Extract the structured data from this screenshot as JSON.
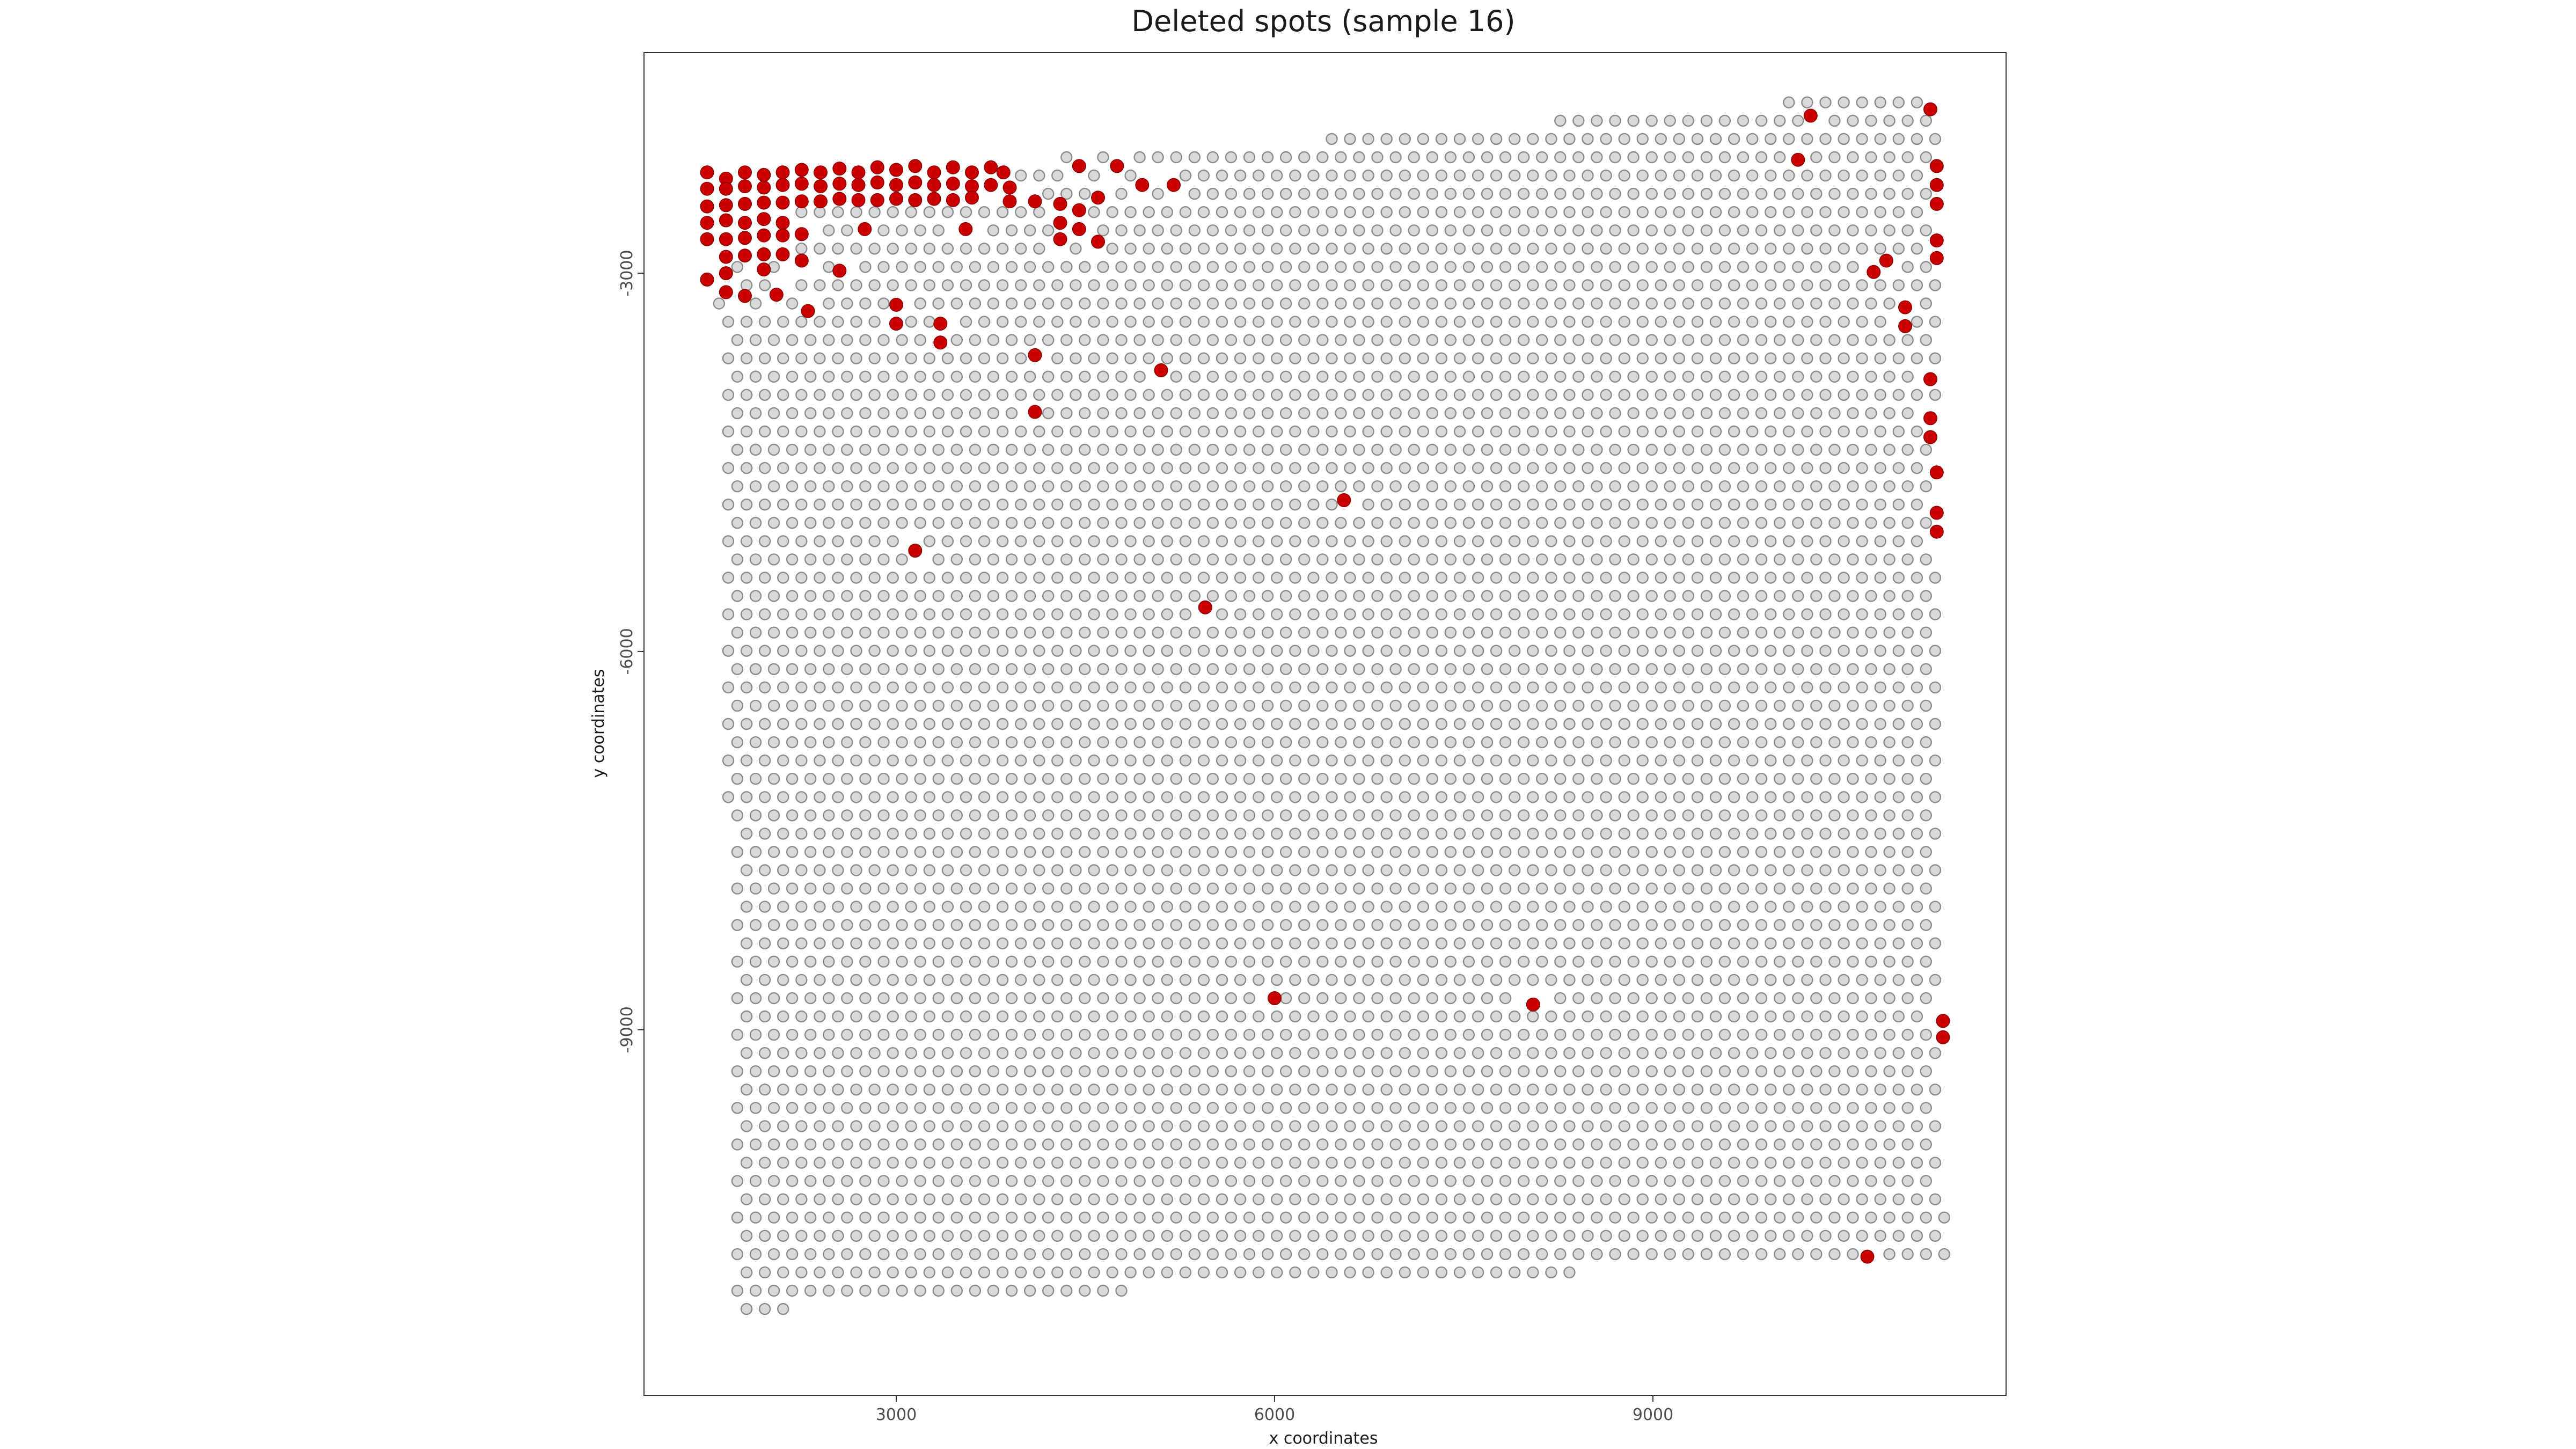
{
  "chart_data": {
    "type": "scatter",
    "title": "Deleted spots (sample 16)",
    "xlabel": "x coordinates",
    "ylabel": "y coordinates",
    "xlim": [
      1000,
      11800
    ],
    "ylim": [
      -11900,
      -1250
    ],
    "x_ticks": [
      3000,
      6000,
      9000
    ],
    "y_ticks": [
      -3000,
      -6000,
      -9000
    ],
    "x_tick_labels": [
      "3000",
      "6000",
      "9000"
    ],
    "y_tick_labels": [
      "-3000",
      "-6000",
      "-9000"
    ],
    "grid": false,
    "legend": "none",
    "colors": {
      "kept_fill": "#d9d9d9",
      "kept_stroke": "#8c8c8c",
      "deleted_fill": "#cc0000",
      "deleted_stroke": "#990000"
    },
    "lattice": {
      "col_spacing": 145,
      "row_spacing": 145,
      "odd_row_offset": 73,
      "top_edge": [
        [
          1480,
          -2250
        ],
        [
          5500,
          -2000
        ],
        [
          11250,
          -1550
        ]
      ],
      "bottom_edge": [
        [
          1600,
          -11250
        ],
        [
          4000,
          -11100
        ],
        [
          7000,
          -11000
        ],
        [
          10800,
          -10800
        ]
      ],
      "left_edge": [
        [
          -2250,
          1500
        ],
        [
          -3500,
          1600
        ],
        [
          -6000,
          1640
        ],
        [
          -9000,
          1700
        ],
        [
          -11250,
          1720
        ]
      ],
      "right_edge": [
        [
          -1550,
          11250
        ],
        [
          -10000,
          11250
        ],
        [
          -10300,
          11250
        ],
        [
          -10700,
          11400
        ]
      ]
    },
    "series": [
      {
        "name": "deleted",
        "points": [
          [
            1500,
            -2200
          ],
          [
            1650,
            -2250
          ],
          [
            1800,
            -2200
          ],
          [
            1950,
            -2220
          ],
          [
            2100,
            -2200
          ],
          [
            2250,
            -2180
          ],
          [
            2400,
            -2200
          ],
          [
            2550,
            -2170
          ],
          [
            2700,
            -2200
          ],
          [
            2850,
            -2160
          ],
          [
            3000,
            -2180
          ],
          [
            3150,
            -2150
          ],
          [
            3300,
            -2200
          ],
          [
            3450,
            -2160
          ],
          [
            3600,
            -2200
          ],
          [
            3750,
            -2160
          ],
          [
            3850,
            -2200
          ],
          [
            1500,
            -2330
          ],
          [
            1650,
            -2330
          ],
          [
            1800,
            -2310
          ],
          [
            1950,
            -2320
          ],
          [
            2100,
            -2300
          ],
          [
            2250,
            -2290
          ],
          [
            2400,
            -2310
          ],
          [
            2550,
            -2290
          ],
          [
            2700,
            -2300
          ],
          [
            2850,
            -2280
          ],
          [
            3000,
            -2300
          ],
          [
            3150,
            -2280
          ],
          [
            3300,
            -2300
          ],
          [
            3450,
            -2290
          ],
          [
            3600,
            -2310
          ],
          [
            3750,
            -2300
          ],
          [
            3900,
            -2320
          ],
          [
            1500,
            -2470
          ],
          [
            1650,
            -2460
          ],
          [
            1800,
            -2450
          ],
          [
            1950,
            -2440
          ],
          [
            2100,
            -2440
          ],
          [
            2250,
            -2430
          ],
          [
            2400,
            -2430
          ],
          [
            2550,
            -2410
          ],
          [
            2700,
            -2420
          ],
          [
            2850,
            -2420
          ],
          [
            3000,
            -2410
          ],
          [
            3150,
            -2420
          ],
          [
            3300,
            -2410
          ],
          [
            3450,
            -2420
          ],
          [
            3600,
            -2400
          ],
          [
            3900,
            -2430
          ],
          [
            4100,
            -2430
          ],
          [
            1500,
            -2600
          ],
          [
            1650,
            -2580
          ],
          [
            1800,
            -2600
          ],
          [
            1950,
            -2570
          ],
          [
            2100,
            -2600
          ],
          [
            1500,
            -2730
          ],
          [
            1650,
            -2730
          ],
          [
            1800,
            -2720
          ],
          [
            1950,
            -2700
          ],
          [
            2100,
            -2700
          ],
          [
            2250,
            -2690
          ],
          [
            1650,
            -2870
          ],
          [
            1800,
            -2860
          ],
          [
            1950,
            -2850
          ],
          [
            2100,
            -2850
          ],
          [
            2250,
            -2900
          ],
          [
            1650,
            -3000
          ],
          [
            1950,
            -2970
          ],
          [
            1500,
            -3050
          ],
          [
            1650,
            -3150
          ],
          [
            1800,
            -3180
          ],
          [
            2050,
            -3170
          ],
          [
            2300,
            -3300
          ],
          [
            2550,
            -2980
          ],
          [
            2750,
            -2650
          ],
          [
            3000,
            -3250
          ],
          [
            3000,
            -3400
          ],
          [
            3350,
            -3400
          ],
          [
            3350,
            -3550
          ],
          [
            3550,
            -2650
          ],
          [
            4100,
            -3650
          ],
          [
            4100,
            -4100
          ],
          [
            4300,
            -2450
          ],
          [
            4300,
            -2600
          ],
          [
            4300,
            -2730
          ],
          [
            4450,
            -2150
          ],
          [
            4450,
            -2500
          ],
          [
            4450,
            -2650
          ],
          [
            4600,
            -2400
          ],
          [
            4600,
            -2750
          ],
          [
            4750,
            -2150
          ],
          [
            4950,
            -2300
          ],
          [
            5200,
            -2300
          ],
          [
            5100,
            -3770
          ],
          [
            3150,
            -5200
          ],
          [
            5450,
            -5650
          ],
          [
            6550,
            -4800
          ],
          [
            6000,
            -8750
          ],
          [
            8050,
            -8800
          ],
          [
            10250,
            -1750
          ],
          [
            10150,
            -2100
          ],
          [
            10750,
            -2990
          ],
          [
            10850,
            -2900
          ],
          [
            11000,
            -3270
          ],
          [
            11000,
            -3420
          ],
          [
            11200,
            -1700
          ],
          [
            11250,
            -2150
          ],
          [
            11250,
            -2300
          ],
          [
            11250,
            -2450
          ],
          [
            11250,
            -2740
          ],
          [
            11250,
            -2880
          ],
          [
            11200,
            -3840
          ],
          [
            11200,
            -4150
          ],
          [
            11200,
            -4300
          ],
          [
            11250,
            -4580
          ],
          [
            11250,
            -4900
          ],
          [
            11250,
            -5050
          ],
          [
            11300,
            -8930
          ],
          [
            11300,
            -9060
          ],
          [
            10700,
            -10800
          ]
        ]
      }
    ]
  }
}
